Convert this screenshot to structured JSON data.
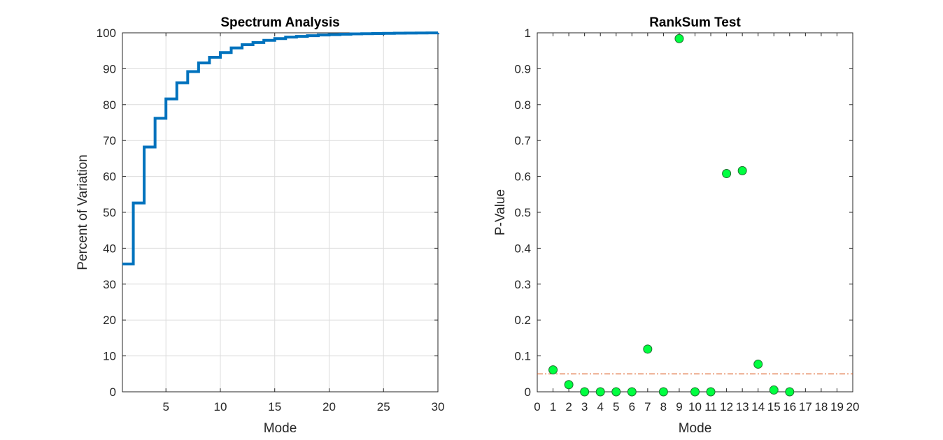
{
  "chart_data": [
    {
      "type": "line",
      "style": "stairs",
      "title": "Spectrum Analysis",
      "xlabel": "Mode",
      "ylabel": "Percent of Variation",
      "xlim": [
        1,
        30
      ],
      "ylim": [
        0,
        100
      ],
      "xticks": [
        5,
        10,
        15,
        20,
        25,
        30
      ],
      "yticks": [
        0,
        10,
        20,
        30,
        40,
        50,
        60,
        70,
        80,
        90,
        100
      ],
      "grid": true,
      "series": [
        {
          "color": "#0072BD",
          "x": [
            1,
            2,
            3,
            4,
            5,
            6,
            7,
            8,
            9,
            10,
            11,
            12,
            13,
            14,
            15,
            16,
            17,
            18,
            19,
            20,
            21,
            22,
            23,
            24,
            25,
            26,
            27,
            28,
            29,
            30
          ],
          "y": [
            35.6,
            52.6,
            68.2,
            76.2,
            81.6,
            86.1,
            89.2,
            91.6,
            93.2,
            94.5,
            95.8,
            96.7,
            97.3,
            97.9,
            98.4,
            98.8,
            99.0,
            99.2,
            99.4,
            99.5,
            99.6,
            99.7,
            99.75,
            99.8,
            99.85,
            99.9,
            99.92,
            99.95,
            99.97,
            100
          ]
        }
      ]
    },
    {
      "type": "scatter",
      "title": "RankSum Test",
      "xlabel": "Mode",
      "ylabel": "P-Value",
      "xlim": [
        0,
        20
      ],
      "ylim": [
        0,
        1
      ],
      "xticks": [
        "0",
        "1",
        "2",
        "3",
        "4",
        "5",
        "6",
        "7",
        "8",
        "9",
        "10",
        "11",
        "12",
        "13",
        "14",
        "15",
        "16",
        "17",
        "18",
        "19",
        "20"
      ],
      "yticks": [
        "0",
        "0.1",
        "0.2",
        "0.3",
        "0.4",
        "0.5",
        "0.6",
        "0.7",
        "0.8",
        "0.9",
        "1"
      ],
      "grid": false,
      "series": [
        {
          "marker_color": "#00FF40",
          "marker_edge": "#1f6f2f",
          "x": [
            1,
            2,
            3,
            4,
            5,
            6,
            7,
            8,
            9,
            10,
            11,
            12,
            13,
            14,
            15,
            16
          ],
          "y": [
            0.061,
            0.02,
            0.0,
            0.0,
            0.0,
            0.0,
            0.119,
            0.0,
            0.984,
            0.0,
            0.0,
            0.608,
            0.616,
            0.077,
            0.005,
            0.0
          ]
        }
      ],
      "reference_line": {
        "y": 0.05,
        "color": "#D95319",
        "style": "dash-dot"
      }
    }
  ]
}
